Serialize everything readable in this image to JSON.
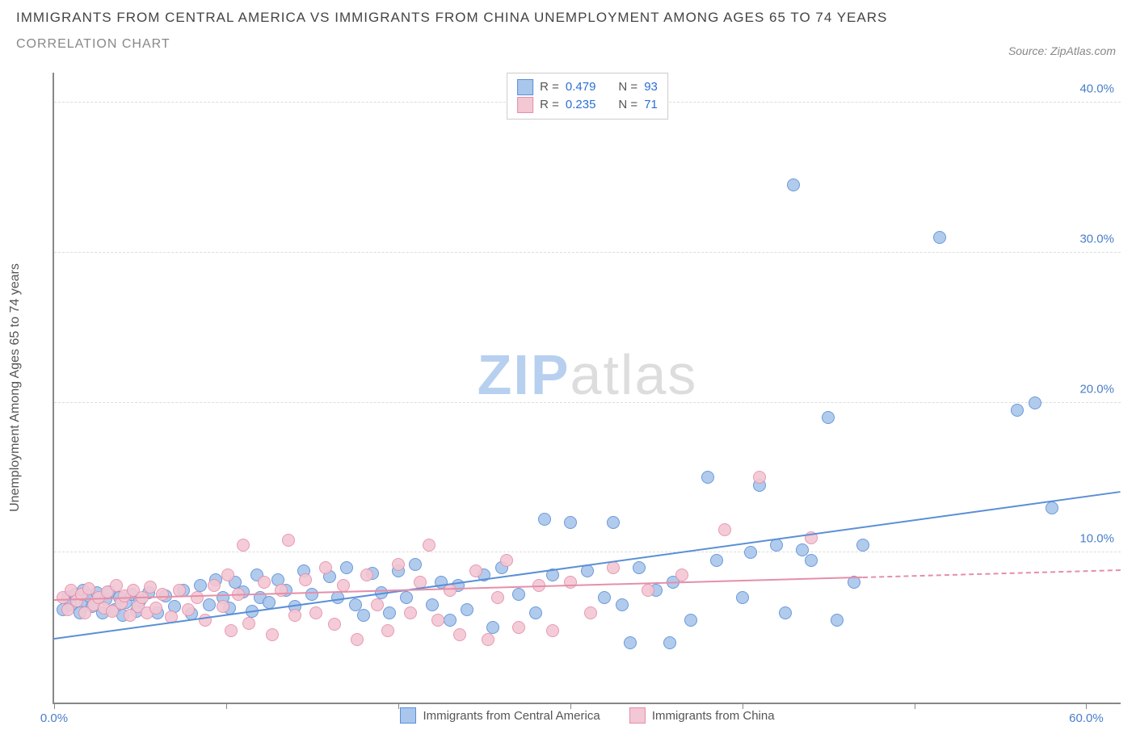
{
  "title_line1": "IMMIGRANTS FROM CENTRAL AMERICA VS IMMIGRANTS FROM CHINA UNEMPLOYMENT AMONG AGES 65 TO 74 YEARS",
  "title_line2": "CORRELATION CHART",
  "source_prefix": "Source: ",
  "source_name": "ZipAtlas.com",
  "y_axis_label": "Unemployment Among Ages 65 to 74 years",
  "watermark_left": "ZIP",
  "watermark_right": "atlas",
  "watermark_left_color": "#b8d0ef",
  "watermark_right_color": "#dddddd",
  "chart": {
    "type": "scatter",
    "background_color": "#ffffff",
    "axis_color": "#888888",
    "grid_color": "#dddddd",
    "tick_label_color": "#4a7ec9",
    "xlim": [
      0,
      62
    ],
    "ylim": [
      0,
      42
    ],
    "x_ticks": [
      0,
      10,
      20,
      30,
      40,
      50,
      60
    ],
    "x_tick_labels": {
      "0": "0.0%",
      "60": "60.0%"
    },
    "y_ticks": [
      10,
      20,
      30,
      40
    ],
    "y_tick_labels": {
      "10": "10.0%",
      "20": "20.0%",
      "30": "30.0%",
      "40": "40.0%"
    },
    "marker_radius": 8,
    "marker_border_width": 1.5,
    "marker_fill_opacity": 0.35,
    "series": [
      {
        "key": "central_america",
        "label": "Immigrants from Central America",
        "color_border": "#5b8fd6",
        "color_fill": "#a9c6ec",
        "R": "0.479",
        "N": "93",
        "trend": {
          "x0": 0,
          "y0": 4.2,
          "x1": 62,
          "y1": 14.0,
          "dashed_from_x": null
        },
        "points": [
          [
            0.5,
            6.2
          ],
          [
            0.8,
            7.0
          ],
          [
            1.0,
            6.5
          ],
          [
            1.2,
            7.2
          ],
          [
            1.5,
            6.0
          ],
          [
            1.7,
            7.5
          ],
          [
            1.8,
            6.8
          ],
          [
            2.0,
            7.1
          ],
          [
            2.2,
            6.4
          ],
          [
            2.5,
            7.3
          ],
          [
            2.8,
            6.0
          ],
          [
            3.0,
            6.9
          ],
          [
            3.2,
            7.4
          ],
          [
            3.5,
            6.2
          ],
          [
            3.8,
            7.0
          ],
          [
            4.0,
            5.8
          ],
          [
            4.2,
            6.7
          ],
          [
            4.5,
            7.2
          ],
          [
            4.8,
            6.1
          ],
          [
            5.0,
            6.8
          ],
          [
            5.5,
            7.3
          ],
          [
            6.0,
            6.0
          ],
          [
            6.5,
            7.1
          ],
          [
            7.0,
            6.4
          ],
          [
            7.5,
            7.5
          ],
          [
            8.0,
            5.9
          ],
          [
            8.5,
            7.8
          ],
          [
            9.0,
            6.5
          ],
          [
            9.4,
            8.2
          ],
          [
            9.8,
            7.0
          ],
          [
            10.2,
            6.3
          ],
          [
            10.5,
            8.0
          ],
          [
            11.0,
            7.4
          ],
          [
            11.5,
            6.1
          ],
          [
            11.8,
            8.5
          ],
          [
            12.0,
            7.0
          ],
          [
            12.5,
            6.7
          ],
          [
            13.0,
            8.2
          ],
          [
            13.5,
            7.5
          ],
          [
            14.0,
            6.4
          ],
          [
            14.5,
            8.8
          ],
          [
            15.0,
            7.2
          ],
          [
            16.0,
            8.4
          ],
          [
            16.5,
            7.0
          ],
          [
            17.0,
            9.0
          ],
          [
            17.5,
            6.5
          ],
          [
            18.0,
            5.8
          ],
          [
            18.5,
            8.6
          ],
          [
            19.0,
            7.3
          ],
          [
            19.5,
            6.0
          ],
          [
            20.0,
            8.8
          ],
          [
            20.5,
            7.0
          ],
          [
            21.0,
            9.2
          ],
          [
            22.0,
            6.5
          ],
          [
            22.5,
            8.0
          ],
          [
            23.0,
            5.5
          ],
          [
            23.5,
            7.8
          ],
          [
            24.0,
            6.2
          ],
          [
            25.0,
            8.5
          ],
          [
            25.5,
            5.0
          ],
          [
            26.0,
            9.0
          ],
          [
            27.0,
            7.2
          ],
          [
            28.0,
            6.0
          ],
          [
            28.5,
            12.2
          ],
          [
            29.0,
            8.5
          ],
          [
            30.0,
            12.0
          ],
          [
            31.0,
            8.8
          ],
          [
            32.0,
            7.0
          ],
          [
            32.5,
            12.0
          ],
          [
            33.0,
            6.5
          ],
          [
            33.5,
            4.0
          ],
          [
            34.0,
            9.0
          ],
          [
            35.0,
            7.5
          ],
          [
            35.8,
            4.0
          ],
          [
            36.0,
            8.0
          ],
          [
            37.0,
            5.5
          ],
          [
            38.0,
            15.0
          ],
          [
            38.5,
            9.5
          ],
          [
            40.0,
            7.0
          ],
          [
            40.5,
            10.0
          ],
          [
            41.0,
            14.5
          ],
          [
            42.0,
            10.5
          ],
          [
            42.5,
            6.0
          ],
          [
            43.0,
            34.5
          ],
          [
            43.5,
            10.2
          ],
          [
            44.0,
            9.5
          ],
          [
            45.0,
            19.0
          ],
          [
            45.5,
            5.5
          ],
          [
            46.5,
            8.0
          ],
          [
            47.0,
            10.5
          ],
          [
            51.5,
            31.0
          ],
          [
            56.0,
            19.5
          ],
          [
            57.0,
            20.0
          ],
          [
            58.0,
            13.0
          ]
        ]
      },
      {
        "key": "china",
        "label": "Immigrants from China",
        "color_border": "#e58fa8",
        "color_fill": "#f3c7d3",
        "R": "0.235",
        "N": "71",
        "trend": {
          "x0": 0,
          "y0": 6.8,
          "x1": 62,
          "y1": 8.8,
          "dashed_from_x": 47
        },
        "points": [
          [
            0.5,
            7.0
          ],
          [
            0.8,
            6.2
          ],
          [
            1.0,
            7.5
          ],
          [
            1.3,
            6.8
          ],
          [
            1.6,
            7.2
          ],
          [
            1.8,
            6.0
          ],
          [
            2.0,
            7.6
          ],
          [
            2.3,
            6.5
          ],
          [
            2.6,
            7.0
          ],
          [
            2.9,
            6.3
          ],
          [
            3.1,
            7.4
          ],
          [
            3.4,
            6.1
          ],
          [
            3.6,
            7.8
          ],
          [
            3.9,
            6.6
          ],
          [
            4.1,
            7.1
          ],
          [
            4.4,
            5.8
          ],
          [
            4.6,
            7.5
          ],
          [
            4.9,
            6.4
          ],
          [
            5.1,
            7.0
          ],
          [
            5.4,
            6.0
          ],
          [
            5.6,
            7.7
          ],
          [
            5.9,
            6.3
          ],
          [
            6.3,
            7.2
          ],
          [
            6.8,
            5.7
          ],
          [
            7.3,
            7.5
          ],
          [
            7.8,
            6.2
          ],
          [
            8.3,
            7.0
          ],
          [
            8.8,
            5.5
          ],
          [
            9.3,
            7.8
          ],
          [
            9.8,
            6.4
          ],
          [
            10.1,
            8.5
          ],
          [
            10.3,
            4.8
          ],
          [
            10.7,
            7.2
          ],
          [
            11.0,
            10.5
          ],
          [
            11.3,
            5.3
          ],
          [
            12.2,
            8.0
          ],
          [
            12.7,
            4.5
          ],
          [
            13.2,
            7.5
          ],
          [
            13.6,
            10.8
          ],
          [
            14.0,
            5.8
          ],
          [
            14.6,
            8.2
          ],
          [
            15.2,
            6.0
          ],
          [
            15.8,
            9.0
          ],
          [
            16.3,
            5.2
          ],
          [
            16.8,
            7.8
          ],
          [
            17.6,
            4.2
          ],
          [
            18.2,
            8.5
          ],
          [
            18.8,
            6.5
          ],
          [
            19.4,
            4.8
          ],
          [
            20.0,
            9.2
          ],
          [
            20.7,
            6.0
          ],
          [
            21.3,
            8.0
          ],
          [
            21.8,
            10.5
          ],
          [
            22.3,
            5.5
          ],
          [
            23.0,
            7.5
          ],
          [
            23.6,
            4.5
          ],
          [
            24.5,
            8.8
          ],
          [
            25.2,
            4.2
          ],
          [
            25.8,
            7.0
          ],
          [
            26.3,
            9.5
          ],
          [
            27.0,
            5.0
          ],
          [
            28.2,
            7.8
          ],
          [
            29.0,
            4.8
          ],
          [
            30.0,
            8.0
          ],
          [
            31.2,
            6.0
          ],
          [
            32.5,
            9.0
          ],
          [
            34.5,
            7.5
          ],
          [
            36.5,
            8.5
          ],
          [
            39.0,
            11.5
          ],
          [
            41.0,
            15.0
          ],
          [
            44.0,
            11.0
          ]
        ]
      }
    ]
  },
  "legend_top": {
    "R_prefix": "R = ",
    "N_prefix": "N = "
  }
}
